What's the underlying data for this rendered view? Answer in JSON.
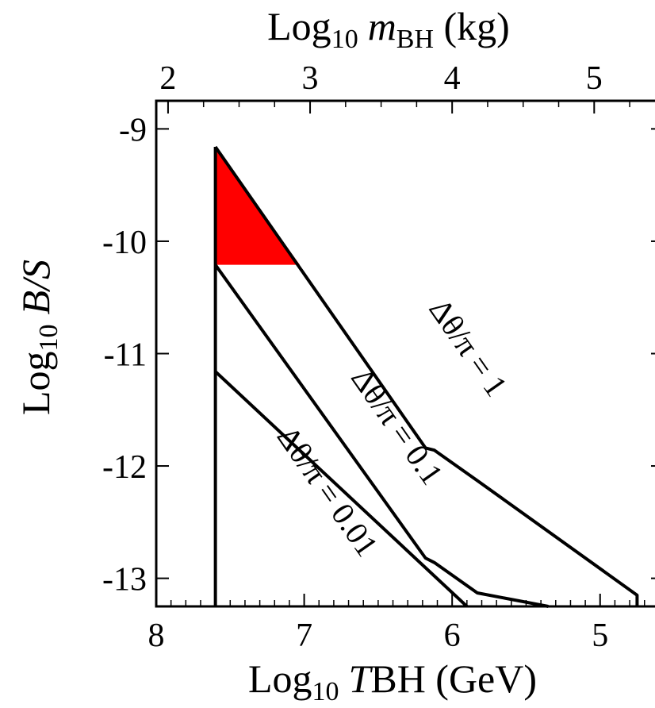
{
  "chart_data": {
    "type": "line",
    "x_axis": {
      "label_pre": "Log",
      "label_sub": "10",
      "label_var": "T",
      "label_rest": "BH (GeV)",
      "range": [
        8.0,
        4.57
      ],
      "ticks": [
        8,
        7,
        6,
        5
      ],
      "tick_labels": [
        "8",
        "7",
        "6",
        "5"
      ]
    },
    "x2_axis": {
      "label_pre": "Log",
      "label_sub": "10",
      "label_var": "m",
      "label_varsub": "BH",
      "label_rest": " (kg)",
      "ticks": [
        2,
        3,
        4,
        5
      ],
      "tick_labels": [
        "2",
        "3",
        "4",
        "5"
      ]
    },
    "y_axis": {
      "label_pre": "Log",
      "label_sub": "10",
      "label_var": "B/S",
      "range": [
        -13.25,
        -8.75
      ],
      "ticks": [
        -9,
        -10,
        -11,
        -12,
        -13
      ],
      "tick_labels": [
        "-9",
        "-10",
        "-11",
        "-12",
        "-13"
      ]
    },
    "series": [
      {
        "label": "Δθ/π = 1",
        "points": [
          [
            7.6,
            -9.16
          ],
          [
            6.18,
            -11.84
          ],
          [
            6.12,
            -11.86
          ],
          [
            5.83,
            -12.13
          ],
          [
            4.75,
            -13.15
          ],
          [
            4.75,
            -13.25
          ]
        ]
      },
      {
        "label": "Δθ/π = 0.1",
        "points": [
          [
            7.6,
            -10.21
          ],
          [
            6.18,
            -12.82
          ],
          [
            6.12,
            -12.86
          ],
          [
            5.83,
            -13.13
          ],
          [
            5.35,
            -13.25
          ]
        ]
      },
      {
        "label": "Δθ/π = 0.01",
        "points": [
          [
            7.6,
            -11.16
          ],
          [
            5.9,
            -13.25
          ]
        ]
      }
    ],
    "boundary": [
      [
        7.6,
        -9.16
      ],
      [
        7.6,
        -13.25
      ]
    ],
    "shaded_region": {
      "color": "#ff0000",
      "points": [
        [
          7.6,
          -9.16
        ],
        [
          7.03,
          -10.21
        ],
        [
          7.6,
          -10.21
        ]
      ]
    },
    "grid": false
  }
}
